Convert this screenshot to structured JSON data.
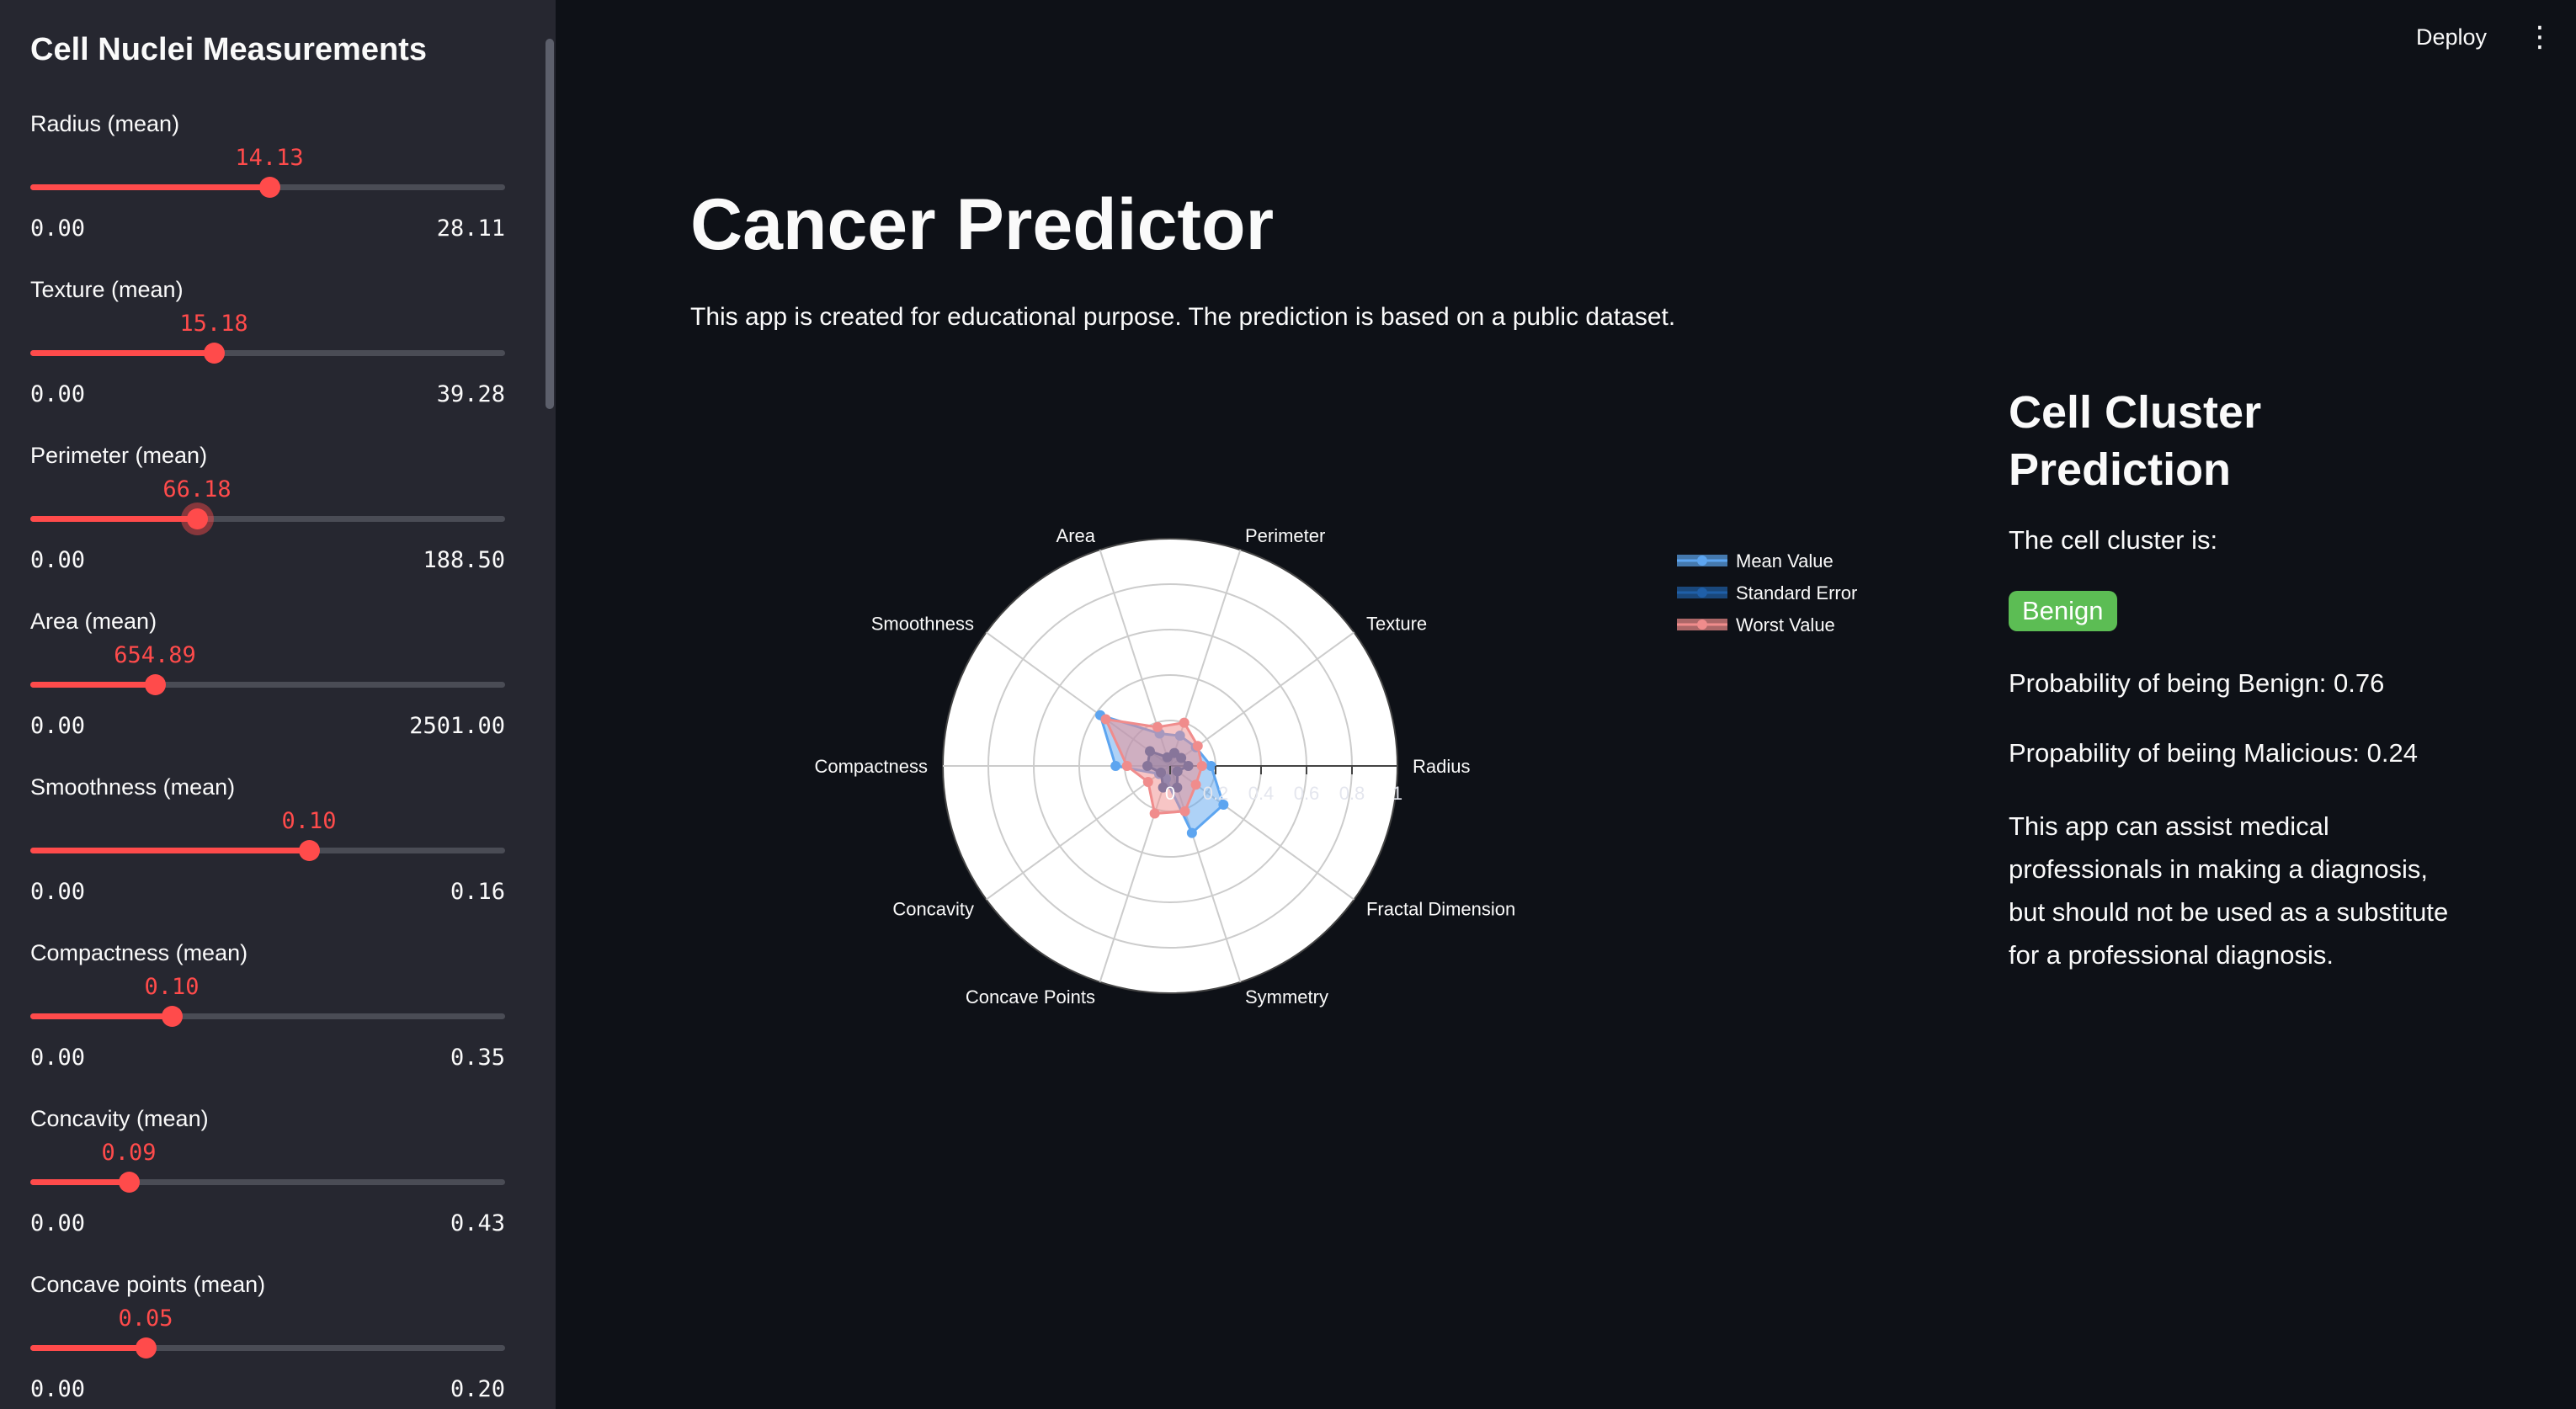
{
  "sidebar": {
    "title": "Cell Nuclei Measurements",
    "sliders": [
      {
        "label": "Radius (mean)",
        "value": "14.13",
        "min": "0.00",
        "max": "28.11",
        "fraction": 0.5027,
        "focused": false
      },
      {
        "label": "Texture (mean)",
        "value": "15.18",
        "min": "0.00",
        "max": "39.28",
        "fraction": 0.3865,
        "focused": false
      },
      {
        "label": "Perimeter (mean)",
        "value": "66.18",
        "min": "0.00",
        "max": "188.50",
        "fraction": 0.3511,
        "focused": true
      },
      {
        "label": "Area (mean)",
        "value": "654.89",
        "min": "0.00",
        "max": "2501.00",
        "fraction": 0.2619,
        "focused": false
      },
      {
        "label": "Smoothness (mean)",
        "value": "0.10",
        "min": "0.00",
        "max": "0.16",
        "fraction": 0.5875,
        "focused": false
      },
      {
        "label": "Compactness (mean)",
        "value": "0.10",
        "min": "0.00",
        "max": "0.35",
        "fraction": 0.2986,
        "focused": false
      },
      {
        "label": "Concavity (mean)",
        "value": "0.09",
        "min": "0.00",
        "max": "0.43",
        "fraction": 0.2074,
        "focused": false
      },
      {
        "label": "Concave points (mean)",
        "value": "0.05",
        "min": "0.00",
        "max": "0.20",
        "fraction": 0.2437,
        "focused": false
      }
    ]
  },
  "header": {
    "deploy_label": "Deploy",
    "menu_icon": "vertical-ellipsis-icon"
  },
  "main": {
    "title": "Cancer Predictor",
    "description": "This app is created for educational purpose. The prediction is based on a public dataset."
  },
  "prediction": {
    "heading_line1": "Cell Cluster",
    "heading_line2": "Prediction",
    "label": "The cell cluster is:",
    "result": "Benign",
    "prob_benign": "Probability of being Benign: 0.76",
    "prob_malicious": "Propability of beiing Malicious: 0.24",
    "disclaimer": "This app can assist medical professionals in making a diagnosis, but should not be used as a substitute for a professional diagnosis."
  },
  "colors": {
    "accent": "#ff4b4b",
    "benign_badge": "#5cbd54",
    "background": "#0e1117",
    "sidebar": "#262730"
  },
  "chart_data": {
    "type": "radar",
    "categories": [
      "Radius",
      "Texture",
      "Perimeter",
      "Area",
      "Smoothness",
      "Compactness",
      "Concavity",
      "Concave Points",
      "Symmetry",
      "Fractal Dimension"
    ],
    "radial_range": [
      0,
      1
    ],
    "radial_ticks": [
      "0",
      "0.2",
      "0.4",
      "0.6",
      "0.8",
      "1"
    ],
    "legend_position": "top-right",
    "series": [
      {
        "name": "Mean Value",
        "color": "#5da5f0",
        "values": [
          0.18,
          0.14,
          0.14,
          0.15,
          0.38,
          0.24,
          0.06,
          0.06,
          0.31,
          0.29
        ]
      },
      {
        "name": "Standard Error",
        "color": "#1f5fa8",
        "values": [
          0.08,
          0.06,
          0.06,
          0.04,
          0.11,
          0.1,
          0.05,
          0.1,
          0.1,
          0.04
        ]
      },
      {
        "name": "Worst Value",
        "color": "#f08c8c",
        "values": [
          0.14,
          0.15,
          0.2,
          0.18,
          0.35,
          0.19,
          0.12,
          0.22,
          0.21,
          0.14
        ]
      }
    ]
  }
}
